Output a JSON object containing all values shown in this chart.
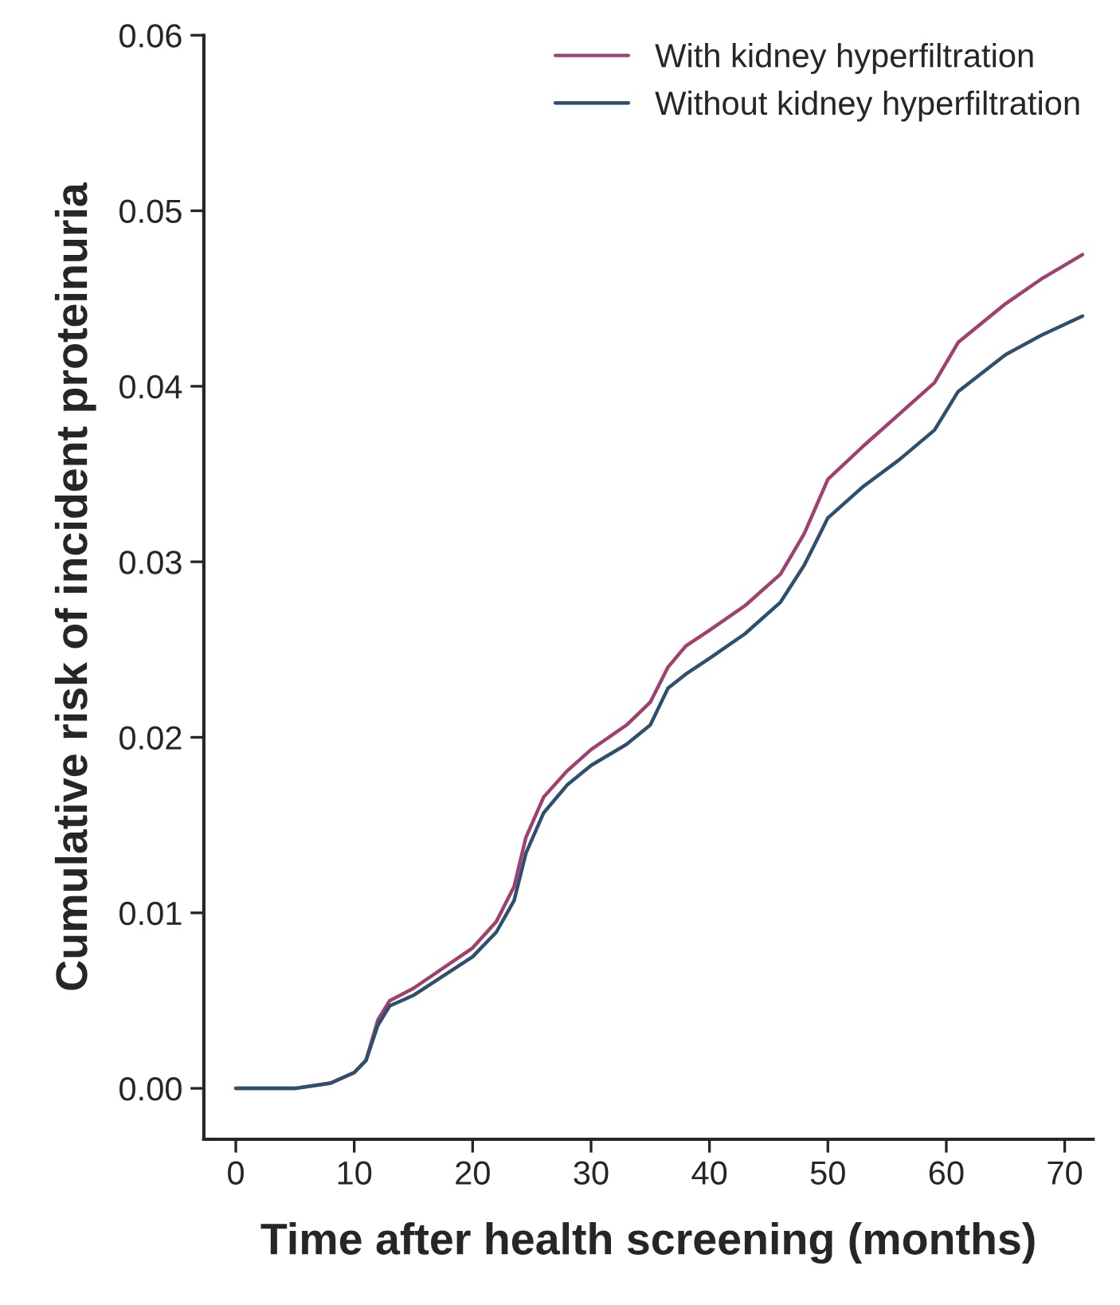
{
  "chart_data": {
    "type": "line",
    "xlabel": "Time after health screening (months)",
    "ylabel": "Cumulative risk of incident proteinuria",
    "xlim": [
      -2.7,
      72.4
    ],
    "xticks": [
      0,
      10,
      20,
      30,
      40,
      50,
      60,
      70
    ],
    "ylim": [
      -0.0029,
      0.06
    ],
    "yticks": [
      {
        "value": 0,
        "label": "0.00"
      },
      {
        "value": 0.01,
        "label": "0.01"
      },
      {
        "value": 0.02,
        "label": "0.02"
      },
      {
        "value": 0.03,
        "label": "0.03"
      },
      {
        "value": 0.04,
        "label": "0.04"
      },
      {
        "value": 0.05,
        "label": "0.05"
      },
      {
        "value": 0.06,
        "label": "0.06"
      }
    ],
    "grid": false,
    "legend": "top right",
    "marker": "none",
    "line_style": "solid",
    "x": [
      0,
      5,
      8,
      10,
      11,
      12,
      13,
      15,
      20,
      22,
      23.5,
      24.5,
      26,
      28,
      30,
      33,
      35,
      36.5,
      38,
      40,
      43,
      46,
      48,
      50,
      53,
      56,
      59,
      61,
      65,
      68,
      71.5
    ],
    "series": [
      {
        "name": "With kidney hyperfiltration",
        "color": "#a0406e",
        "values": [
          0,
          0,
          0.0003,
          0.0009,
          0.0016,
          0.0039,
          0.005,
          0.0057,
          0.008,
          0.0095,
          0.0115,
          0.0143,
          0.0166,
          0.0181,
          0.0193,
          0.0207,
          0.022,
          0.024,
          0.0252,
          0.0261,
          0.0275,
          0.0293,
          0.0316,
          0.0347,
          0.0366,
          0.0384,
          0.0402,
          0.0425,
          0.0447,
          0.0461,
          0.0475
        ]
      },
      {
        "name": "Without kidney hyperfiltration",
        "color": "#2f4f6f",
        "values": [
          0,
          0,
          0.0003,
          0.0009,
          0.0016,
          0.0036,
          0.0047,
          0.0053,
          0.0075,
          0.0089,
          0.0107,
          0.0134,
          0.0157,
          0.0173,
          0.0184,
          0.0196,
          0.0207,
          0.0228,
          0.0236,
          0.0245,
          0.0259,
          0.0277,
          0.0298,
          0.0325,
          0.0343,
          0.0358,
          0.0375,
          0.0397,
          0.0418,
          0.0429,
          0.044
        ]
      }
    ]
  }
}
